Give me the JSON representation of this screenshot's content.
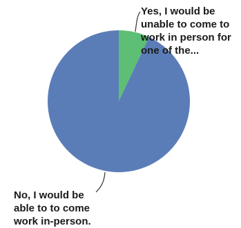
{
  "chart_data": {
    "type": "pie",
    "title": "",
    "slices": [
      {
        "label_lines": [
          "Yes, I would be",
          "unable to come to",
          "work in person for",
          "one of the..."
        ],
        "value": 7,
        "color": "#5dbf75"
      },
      {
        "label_lines": [
          "No, I would be",
          "able to to come",
          "work in-person."
        ],
        "value": 93,
        "color": "#5b7db7"
      }
    ],
    "legend": "none",
    "leader_line_color": "#333333"
  }
}
